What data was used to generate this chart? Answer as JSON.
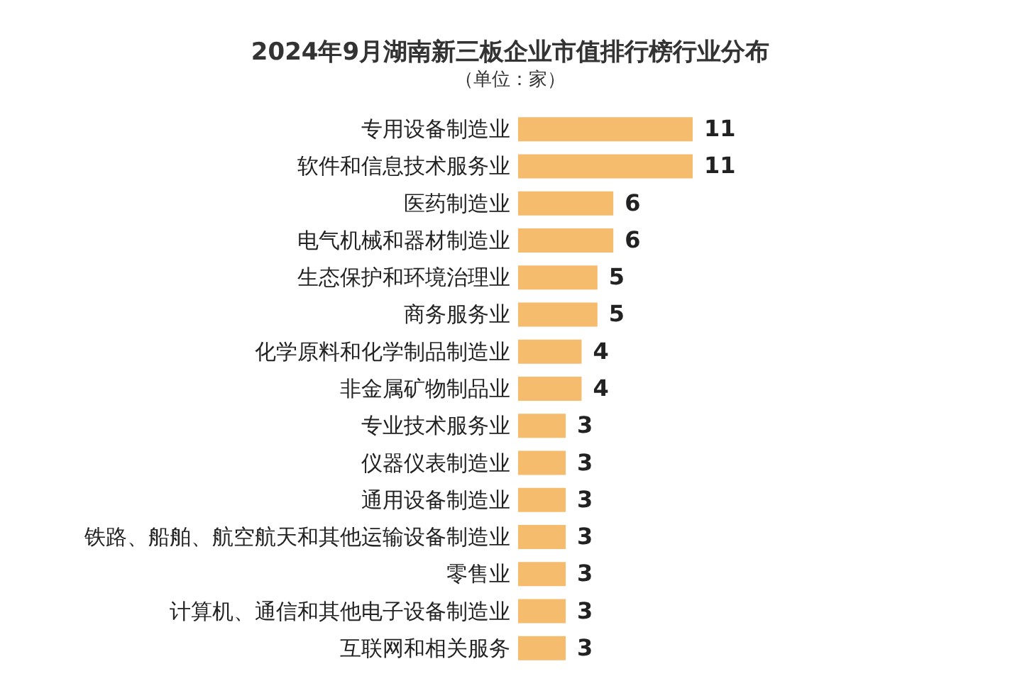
{
  "chart_data": {
    "type": "bar",
    "orientation": "horizontal",
    "title": "2024年9月湖南新三板企业市值排行榜行业分布",
    "subtitle": "（单位：家）",
    "categories": [
      "专用设备制造业",
      "软件和信息技术服务业",
      "医药制造业",
      "电气机械和器材制造业",
      "生态保护和环境治理业",
      "商务服务业",
      "化学原料和化学制品制造业",
      "非金属矿物制品业",
      "专业技术服务业",
      "仪器仪表制造业",
      "通用设备制造业",
      "铁路、船舶、航空航天和其他运输设备制造业",
      "零售业",
      "计算机、通信和其他电子设备制造业",
      "互联网和相关服务"
    ],
    "values": [
      11,
      11,
      6,
      6,
      5,
      5,
      4,
      4,
      3,
      3,
      3,
      3,
      3,
      3,
      3
    ],
    "color": "#f5bc6e",
    "data_labels": true
  }
}
